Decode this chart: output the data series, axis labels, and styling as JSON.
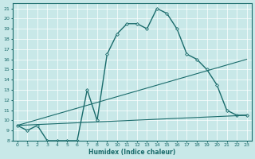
{
  "title": "",
  "xlabel": "Humidex (Indice chaleur)",
  "xlim": [
    -0.5,
    23.5
  ],
  "ylim": [
    8,
    21.5
  ],
  "yticks": [
    8,
    9,
    10,
    11,
    12,
    13,
    14,
    15,
    16,
    17,
    18,
    19,
    20,
    21
  ],
  "xticks": [
    0,
    1,
    2,
    3,
    4,
    5,
    6,
    7,
    8,
    9,
    10,
    11,
    12,
    13,
    14,
    15,
    16,
    17,
    18,
    19,
    20,
    21,
    22,
    23
  ],
  "bg_color": "#c8e8e8",
  "grid_color": "#ffffff",
  "line_color": "#1a6b6b",
  "lines": [
    {
      "x": [
        0,
        1,
        2,
        3,
        4,
        5,
        6,
        7,
        8,
        9,
        10,
        11,
        12,
        13,
        14,
        15,
        16,
        17,
        18,
        19,
        20,
        21,
        22,
        23
      ],
      "y": [
        9.5,
        9.0,
        9.5,
        8.0,
        8.0,
        8.0,
        8.0,
        13.0,
        10.0,
        16.5,
        18.5,
        19.5,
        19.5,
        19.0,
        21.0,
        20.5,
        19.0,
        16.5,
        16.0,
        15.0,
        13.5,
        11.0,
        10.5,
        10.5
      ],
      "marker": "D",
      "markersize": 2,
      "linewidth": 1.0
    },
    {
      "x": [
        0,
        23
      ],
      "y": [
        9.5,
        16.0
      ],
      "marker": null,
      "markersize": 0,
      "linewidth": 0.8
    },
    {
      "x": [
        0,
        23
      ],
      "y": [
        9.5,
        10.5
      ],
      "marker": null,
      "markersize": 0,
      "linewidth": 0.8
    }
  ]
}
